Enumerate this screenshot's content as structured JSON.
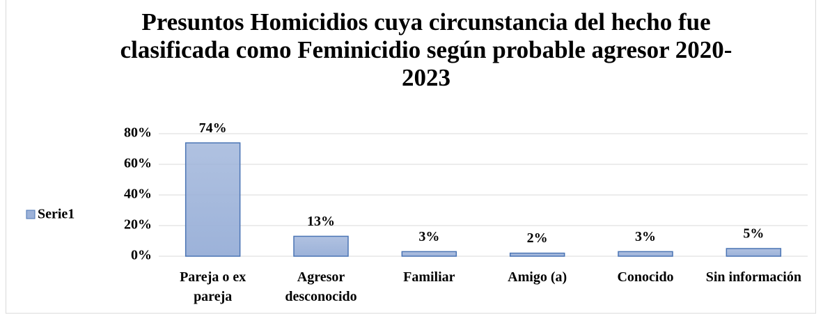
{
  "chart_data": {
    "type": "bar",
    "title": "Presuntos Homicidios cuya circunstancia del hecho fue clasificada como Feminicidio según probable agresor 2020-2023",
    "categories": [
      "Pareja o ex pareja",
      "Agresor desconocido",
      "Familiar",
      "Amigo (a)",
      "Conocido",
      "Sin información"
    ],
    "series": [
      {
        "name": "Serie1",
        "color": "#9cb2d9",
        "values": [
          74,
          13,
          3,
          2,
          3,
          5
        ],
        "value_labels": [
          "74%",
          "13%",
          "3%",
          "2%",
          "3%",
          "5%"
        ]
      }
    ],
    "ylim": [
      0,
      80
    ],
    "yticks": [
      {
        "value": 0,
        "label": "0%"
      },
      {
        "value": 20,
        "label": "20%"
      },
      {
        "value": 40,
        "label": "40%"
      },
      {
        "value": 60,
        "label": "60%"
      },
      {
        "value": 80,
        "label": "80%"
      }
    ],
    "grid": true,
    "legend": "left"
  }
}
